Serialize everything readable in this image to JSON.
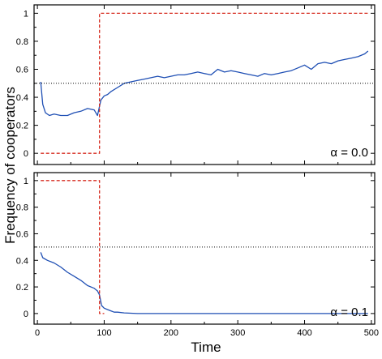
{
  "chart_data": [
    {
      "type": "line",
      "panel": "top",
      "annotation": "α = 0.0",
      "xlim": [
        -5,
        505
      ],
      "ylim": [
        -0.08,
        1.06
      ],
      "yticks": [
        0,
        0.2,
        0.4,
        0.6,
        0.8,
        1
      ],
      "ytick_labels": [
        "0",
        "0.2",
        "0.4",
        "0.6",
        "0.8",
        "1"
      ],
      "grid": false,
      "series": [
        {
          "color": "#1f4fb4",
          "style": "solid",
          "x": [
            5,
            8,
            12,
            18,
            25,
            35,
            45,
            55,
            65,
            75,
            85,
            90,
            95,
            100,
            105,
            110,
            120,
            130,
            140,
            150,
            160,
            170,
            180,
            190,
            200,
            210,
            220,
            230,
            240,
            250,
            260,
            270,
            280,
            290,
            300,
            310,
            320,
            330,
            340,
            350,
            360,
            370,
            380,
            390,
            400,
            410,
            420,
            430,
            440,
            450,
            460,
            470,
            480,
            490,
            495
          ],
          "y": [
            0.51,
            0.35,
            0.29,
            0.27,
            0.28,
            0.27,
            0.27,
            0.29,
            0.3,
            0.32,
            0.31,
            0.27,
            0.38,
            0.41,
            0.42,
            0.44,
            0.47,
            0.5,
            0.51,
            0.52,
            0.53,
            0.54,
            0.55,
            0.54,
            0.55,
            0.56,
            0.56,
            0.57,
            0.58,
            0.57,
            0.56,
            0.6,
            0.58,
            0.59,
            0.58,
            0.57,
            0.56,
            0.55,
            0.57,
            0.56,
            0.57,
            0.58,
            0.59,
            0.61,
            0.63,
            0.6,
            0.64,
            0.65,
            0.64,
            0.66,
            0.67,
            0.68,
            0.69,
            0.71,
            0.73
          ]
        },
        {
          "color": "#d62a1e",
          "style": "dashed",
          "x": [
            5,
            93,
            93,
            495
          ],
          "y": [
            0,
            0,
            1,
            1
          ]
        },
        {
          "color": "#000000",
          "style": "dotted",
          "x": [
            -5,
            505
          ],
          "y": [
            0.5,
            0.5
          ]
        }
      ]
    },
    {
      "type": "line",
      "panel": "bottom",
      "annotation": "α = 0.1",
      "xlim": [
        -5,
        505
      ],
      "ylim": [
        -0.08,
        1.06
      ],
      "xticks": [
        0,
        100,
        200,
        300,
        400,
        500
      ],
      "xtick_labels": [
        "0",
        "100",
        "200",
        "300",
        "400",
        "500"
      ],
      "yticks": [
        0,
        0.2,
        0.4,
        0.6,
        0.8,
        1
      ],
      "ytick_labels": [
        "0",
        "0.2",
        "0.4",
        "0.6",
        "0.8",
        "1"
      ],
      "grid": false,
      "series": [
        {
          "color": "#1f4fb4",
          "style": "solid",
          "x": [
            5,
            8,
            15,
            25,
            35,
            45,
            55,
            65,
            75,
            85,
            90,
            93,
            96,
            100,
            105,
            110,
            115,
            120,
            130,
            140,
            150,
            200,
            300,
            400,
            495
          ],
          "y": [
            0.46,
            0.42,
            0.4,
            0.38,
            0.35,
            0.31,
            0.28,
            0.25,
            0.21,
            0.19,
            0.17,
            0.14,
            0.06,
            0.04,
            0.03,
            0.02,
            0.01,
            0.01,
            0.005,
            0.002,
            0,
            0,
            0,
            0,
            0
          ]
        },
        {
          "color": "#d62a1e",
          "style": "dashed",
          "x": [
            5,
            93,
            93,
            100
          ],
          "y": [
            1,
            1,
            0,
            0
          ]
        },
        {
          "color": "#000000",
          "style": "dotted",
          "x": [
            -5,
            505
          ],
          "y": [
            0.5,
            0.5
          ]
        }
      ]
    }
  ],
  "xlabel": "Time",
  "ylabel": "Frequency of cooperators"
}
